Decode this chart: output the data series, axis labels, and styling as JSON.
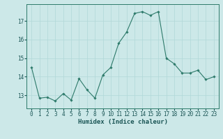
{
  "x_values": [
    0,
    1,
    2,
    3,
    4,
    5,
    6,
    7,
    8,
    9,
    10,
    11,
    12,
    13,
    14,
    15,
    16,
    17,
    18,
    19,
    20,
    21,
    22,
    23
  ],
  "y_values": [
    14.5,
    12.85,
    12.9,
    12.7,
    13.1,
    12.75,
    13.9,
    13.3,
    12.85,
    14.1,
    14.5,
    15.8,
    16.4,
    17.4,
    17.5,
    17.3,
    17.5,
    15.0,
    14.7,
    14.2,
    14.2,
    14.35,
    13.85,
    14.0
  ],
  "line_color": "#2d7a6a",
  "marker_color": "#2d7a6a",
  "bg_color": "#cce8e8",
  "grid_color": "#b0d8d8",
  "yticks": [
    13,
    14,
    15,
    16,
    17
  ],
  "ylim": [
    12.3,
    17.9
  ],
  "xlim": [
    -0.6,
    23.6
  ],
  "xlabel": "Humidex (Indice chaleur)",
  "xlabel_fontsize": 6.5,
  "tick_fontsize": 5.5,
  "axis_color": "#2d7a6a",
  "text_color": "#1a5555"
}
